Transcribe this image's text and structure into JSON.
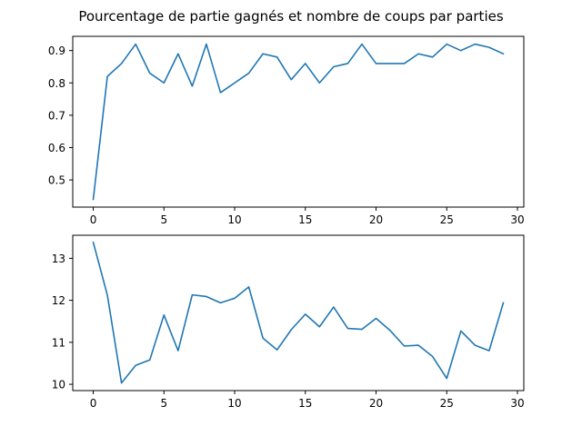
{
  "chart_data": {
    "title": "Pourcentage de partie gagnés et nombre de coups par parties",
    "line_color": "#1f77b4",
    "subplots": [
      {
        "type": "line",
        "xlim": [
          -1.45,
          30.45
        ],
        "ylim": [
          0.416,
          0.944
        ],
        "xticks": [
          0,
          5,
          10,
          15,
          20,
          25,
          30
        ],
        "yticks": [
          0.5,
          0.6,
          0.7,
          0.8,
          0.9
        ],
        "ytick_labels": [
          "0.5",
          "0.6",
          "0.7",
          "0.8",
          "0.9"
        ],
        "xlabel": "",
        "ylabel": "",
        "grid": false,
        "series": [
          {
            "x": [
              0,
              1,
              2,
              3,
              4,
              5,
              6,
              7,
              8,
              9,
              10,
              11,
              12,
              13,
              14,
              15,
              16,
              17,
              18,
              19,
              20,
              21,
              22,
              23,
              24,
              25,
              26,
              27,
              28,
              29
            ],
            "values": [
              0.44,
              0.82,
              0.86,
              0.92,
              0.83,
              0.8,
              0.89,
              0.79,
              0.92,
              0.77,
              0.8,
              0.83,
              0.89,
              0.88,
              0.81,
              0.86,
              0.8,
              0.85,
              0.86,
              0.92,
              0.86,
              0.86,
              0.86,
              0.89,
              0.88,
              0.92,
              0.9,
              0.92,
              0.91,
              0.89
            ]
          }
        ]
      },
      {
        "type": "line",
        "xlim": [
          -1.45,
          30.45
        ],
        "ylim": [
          9.85,
          13.55
        ],
        "xticks": [
          0,
          5,
          10,
          15,
          20,
          25,
          30
        ],
        "yticks": [
          10,
          11,
          12,
          13
        ],
        "ytick_labels": [
          "10",
          "11",
          "12",
          "13"
        ],
        "xlabel": "",
        "ylabel": "",
        "grid": false,
        "series": [
          {
            "x": [
              0,
              1,
              2,
              3,
              4,
              5,
              6,
              7,
              8,
              9,
              10,
              11,
              12,
              13,
              14,
              15,
              16,
              17,
              18,
              19,
              20,
              21,
              22,
              23,
              24,
              25,
              26,
              27,
              28,
              29
            ],
            "values": [
              13.38,
              12.12,
              10.03,
              10.45,
              10.58,
              11.65,
              10.8,
              12.13,
              12.09,
              11.94,
              12.05,
              12.32,
              11.1,
              10.82,
              11.3,
              11.67,
              11.37,
              11.84,
              11.33,
              11.31,
              11.57,
              11.28,
              10.91,
              10.93,
              10.66,
              10.14,
              11.27,
              10.93,
              10.8,
              11.94
            ]
          }
        ]
      }
    ]
  }
}
